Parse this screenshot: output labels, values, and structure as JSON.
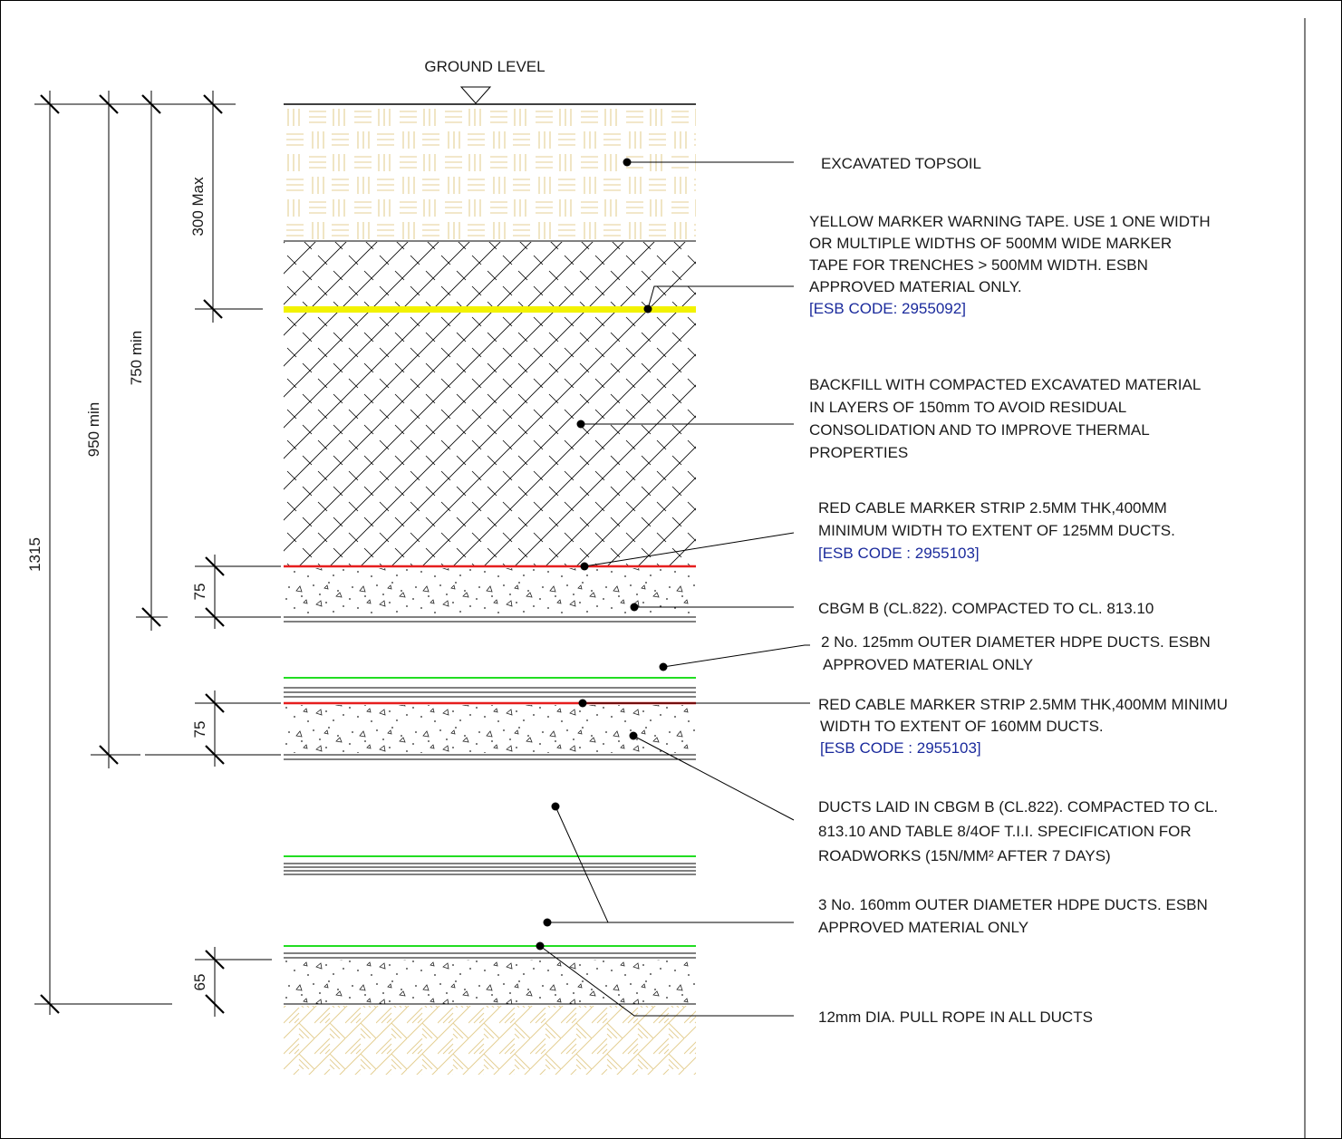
{
  "ground_level": "GROUND LEVEL",
  "colors": {
    "marker_tape": "#f2f200",
    "red_strip": "#e61e1e",
    "duct": "#22dd22",
    "code_text": "#1a2a9c",
    "topsoil_hatch": "#e4cf94"
  },
  "dimensions": {
    "d300": "300 Max",
    "d750": "750 min",
    "d950": "950 min",
    "d1315": "1315",
    "d75a": "75",
    "d75b": "75",
    "d65": "65"
  },
  "callouts": {
    "topsoil": [
      "EXCAVATED TOPSOIL"
    ],
    "tape": [
      "YELLOW MARKER WARNING TAPE. USE 1 ONE WIDTH",
      "OR MULTIPLE WIDTHS OF 500MM WIDE MARKER",
      "TAPE FOR TRENCHES > 500MM WIDTH. ESBN",
      "APPROVED MATERIAL ONLY."
    ],
    "tape_code": "[ESB CODE: 2955092]",
    "backfill": [
      "BACKFILL WITH COMPACTED EXCAVATED MATERIAL",
      "IN LAYERS OF 150mm TO AVOID RESIDUAL",
      "CONSOLIDATION AND TO IMPROVE THERMAL",
      "PROPERTIES"
    ],
    "red1": [
      "RED CABLE MARKER STRIP 2.5MM THK,400MM",
      "MINIMUM WIDTH TO EXTENT OF 125MM DUCTS."
    ],
    "red1_code": "[ESB CODE : 2955103]",
    "cbgm": [
      "CBGM B (CL.822). COMPACTED TO CL. 813.10"
    ],
    "duct125": [
      "2 No. 125mm OUTER DIAMETER HDPE DUCTS. ESBN",
      "APPROVED MATERIAL ONLY"
    ],
    "red2": [
      "RED CABLE MARKER STRIP 2.5MM THK,400MM MINIMU",
      "WIDTH TO EXTENT OF 160MM DUCTS."
    ],
    "red2_code": "[ESB CODE : 2955103]",
    "ductslaid": [
      "DUCTS LAID IN CBGM B (CL.822). COMPACTED TO CL.",
      "813.10 AND TABLE 8/4OF T.I.I. SPECIFICATION FOR",
      "ROADWORKS (15N/MM² AFTER 7 DAYS)"
    ],
    "duct160": [
      "3 No. 160mm OUTER DIAMETER HDPE DUCTS. ESBN",
      "APPROVED MATERIAL ONLY"
    ],
    "rope": [
      "12mm DIA. PULL ROPE IN ALL DUCTS"
    ]
  }
}
